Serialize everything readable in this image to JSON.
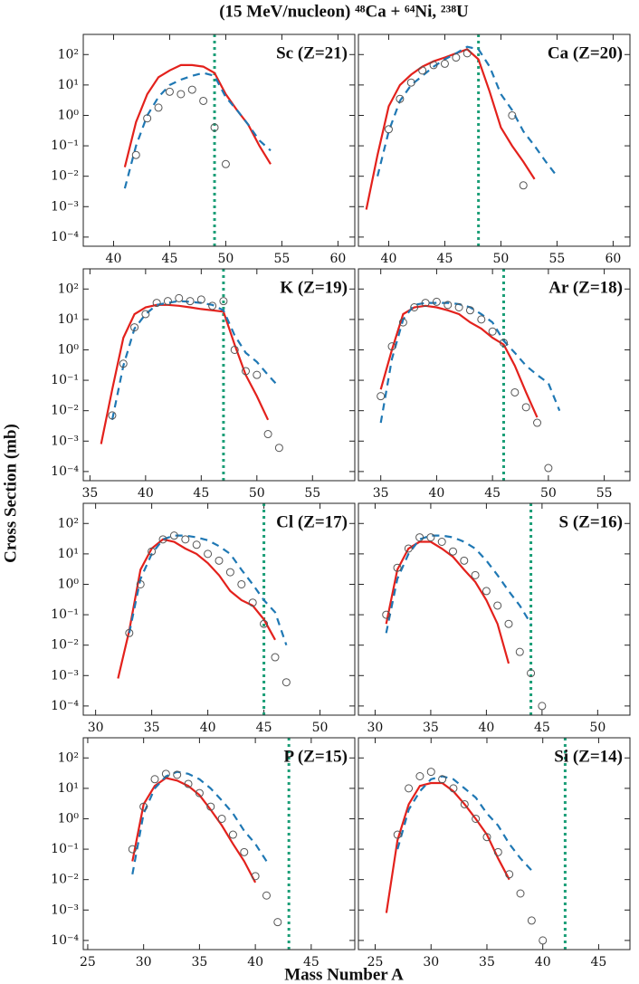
{
  "figure": {
    "title": "(15 MeV/nucleon) ⁴⁸Ca + ⁶⁴Ni, ²³⁸U",
    "xlabel": "Mass Number A",
    "ylabel": "Cross Section (mb)",
    "log_y": true,
    "ylim": [
      5e-05,
      460
    ],
    "yticks": [
      {
        "value": 0.0001,
        "label": "10⁻⁴"
      },
      {
        "value": 0.001,
        "label": "10⁻³"
      },
      {
        "value": 0.01,
        "label": "10⁻²"
      },
      {
        "value": 0.1,
        "label": "10⁻¹"
      },
      {
        "value": 1,
        "label": "10⁰"
      },
      {
        "value": 10,
        "label": "10¹"
      },
      {
        "value": 100,
        "label": "10²"
      }
    ]
  },
  "chart_data": [
    {
      "type": "line",
      "label": "Sc (Z=21)",
      "xlim": [
        37.3,
        61.5
      ],
      "xticks": [
        40,
        45,
        50,
        55,
        60
      ],
      "vline": 49,
      "vline_color": "#1b9e77",
      "series": [
        {
          "color": "#e3211c",
          "style": "solid",
          "x": [
            41,
            42,
            43,
            44,
            45,
            46,
            47,
            48,
            49,
            50,
            51,
            52,
            53,
            54
          ],
          "values": [
            0.02,
            0.6,
            5,
            18,
            30,
            45,
            45,
            40,
            25,
            5,
            1.5,
            0.5,
            0.1,
            0.025
          ]
        },
        {
          "color": "#1f78b4",
          "style": "dashed",
          "x": [
            41,
            42,
            43,
            44,
            45,
            46,
            47,
            48,
            49,
            50,
            51,
            52,
            53,
            54
          ],
          "values": [
            0.004,
            0.1,
            1,
            4,
            10,
            15,
            20,
            25,
            20,
            4,
            1.5,
            0.5,
            0.15,
            0.07
          ]
        },
        {
          "color": "#555555",
          "style": "markers",
          "x": [
            42,
            43,
            44,
            45,
            46,
            47,
            48,
            49,
            50
          ],
          "values": [
            0.05,
            0.8,
            1.8,
            6,
            5,
            7,
            3,
            0.4,
            0.025
          ]
        }
      ]
    },
    {
      "type": "line",
      "label": "Ca (Z=20)",
      "xlim": [
        37.3,
        61.5
      ],
      "xticks": [
        40,
        45,
        50,
        55,
        60
      ],
      "vline": 48,
      "vline_color": "#1b9e77",
      "series": [
        {
          "color": "#e3211c",
          "style": "solid",
          "x": [
            38,
            39,
            40,
            41,
            42,
            43,
            44,
            45,
            46,
            47,
            48,
            49,
            50,
            51,
            52,
            53
          ],
          "values": [
            0.0008,
            0.05,
            2,
            10,
            22,
            40,
            60,
            80,
            110,
            150,
            70,
            6,
            0.4,
            0.1,
            0.03,
            0.008
          ]
        },
        {
          "color": "#1f78b4",
          "style": "dashed",
          "x": [
            39,
            40,
            41,
            42,
            43,
            44,
            45,
            46,
            47,
            48,
            49,
            50,
            51,
            52,
            53,
            54,
            55
          ],
          "values": [
            0.01,
            0.3,
            3,
            10,
            20,
            40,
            70,
            110,
            180,
            150,
            40,
            5,
            1.5,
            0.3,
            0.1,
            0.03,
            0.01
          ]
        },
        {
          "color": "#555555",
          "style": "markers",
          "x": [
            40,
            41,
            42,
            43,
            44,
            45,
            46,
            47,
            51,
            52
          ],
          "values": [
            0.35,
            3.5,
            12,
            30,
            45,
            50,
            80,
            110,
            1,
            0.005
          ]
        }
      ]
    },
    {
      "type": "line",
      "label": "K (Z=19)",
      "xlim": [
        34.4,
        58.8
      ],
      "xticks": [
        35,
        40,
        45,
        50,
        55
      ],
      "vline": 47,
      "vline_color": "#1b9e77",
      "series": [
        {
          "color": "#e3211c",
          "style": "solid",
          "x": [
            36,
            37,
            38,
            39,
            40,
            41,
            42,
            43,
            44,
            45,
            46,
            47,
            48,
            49,
            50,
            51
          ],
          "values": [
            0.0008,
            0.05,
            2.5,
            15,
            25,
            30,
            30,
            28,
            25,
            22,
            20,
            18,
            1.5,
            0.15,
            0.03,
            0.005
          ]
        },
        {
          "color": "#1f78b4",
          "style": "dashed",
          "x": [
            37,
            38,
            39,
            40,
            41,
            42,
            43,
            44,
            45,
            46,
            47,
            48,
            49,
            50,
            51,
            52
          ],
          "values": [
            0.005,
            0.3,
            5,
            15,
            30,
            35,
            40,
            38,
            35,
            30,
            20,
            3,
            0.8,
            0.4,
            0.15,
            0.06
          ]
        },
        {
          "color": "#555555",
          "style": "markers",
          "x": [
            37,
            38,
            39,
            40,
            41,
            42,
            43,
            44,
            45,
            46,
            47,
            48,
            49,
            50,
            51,
            52
          ],
          "values": [
            0.007,
            0.35,
            5.5,
            15,
            35,
            40,
            50,
            40,
            45,
            28,
            40,
            1,
            0.2,
            0.15,
            0.0017,
            0.0006
          ]
        }
      ]
    },
    {
      "type": "line",
      "label": "Ar (Z=18)",
      "xlim": [
        33,
        57.3
      ],
      "xticks": [
        35,
        40,
        45,
        50,
        55
      ],
      "vline": 46,
      "vline_color": "#1b9e77",
      "series": [
        {
          "color": "#e3211c",
          "style": "solid",
          "x": [
            35,
            36,
            37,
            38,
            39,
            40,
            41,
            42,
            43,
            44,
            45,
            46,
            47,
            48,
            49
          ],
          "values": [
            0.05,
            1,
            15,
            25,
            28,
            25,
            20,
            15,
            8,
            5,
            2.5,
            1.5,
            0.3,
            0.04,
            0.006
          ]
        },
        {
          "color": "#1f78b4",
          "style": "dashed",
          "x": [
            35,
            36,
            37,
            38,
            39,
            40,
            41,
            42,
            43,
            44,
            45,
            46,
            47,
            48,
            49,
            50,
            51
          ],
          "values": [
            0.004,
            0.5,
            10,
            30,
            35,
            35,
            35,
            32,
            25,
            15,
            8,
            2,
            0.8,
            0.3,
            0.15,
            0.08,
            0.01
          ]
        },
        {
          "color": "#555555",
          "style": "markers",
          "x": [
            35,
            36,
            37,
            38,
            39,
            40,
            41,
            42,
            43,
            44,
            45,
            46,
            47,
            48,
            49,
            50
          ],
          "values": [
            0.03,
            1.3,
            8,
            25,
            35,
            38,
            30,
            25,
            20,
            10,
            4,
            1.7,
            0.04,
            0.013,
            0.004,
            0.00013
          ]
        }
      ]
    },
    {
      "type": "line",
      "label": "Cl (Z=17)",
      "xlim": [
        28.9,
        53.1
      ],
      "xticks": [
        30,
        35,
        40,
        45,
        50
      ],
      "vline": 45,
      "vline_color": "#1b9e77",
      "series": [
        {
          "color": "#e3211c",
          "style": "solid",
          "x": [
            32,
            33,
            34,
            35,
            36,
            37,
            38,
            39,
            40,
            41,
            42,
            43,
            44,
            45,
            46
          ],
          "values": [
            0.0008,
            0.03,
            3,
            15,
            30,
            25,
            15,
            10,
            5,
            2,
            0.6,
            0.3,
            0.2,
            0.07,
            0.015
          ]
        },
        {
          "color": "#1f78b4",
          "style": "dashed",
          "x": [
            33,
            34,
            35,
            36,
            37,
            38,
            39,
            40,
            41,
            42,
            43,
            44,
            45,
            46,
            47
          ],
          "values": [
            0.025,
            1.5,
            10,
            30,
            40,
            40,
            35,
            28,
            18,
            10,
            3,
            1,
            0.3,
            0.12,
            0.01
          ]
        },
        {
          "color": "#555555",
          "style": "markers",
          "x": [
            33,
            34,
            35,
            36,
            37,
            38,
            39,
            40,
            41,
            42,
            43,
            44,
            45,
            46,
            47
          ],
          "values": [
            0.025,
            1,
            12,
            30,
            40,
            30,
            20,
            10,
            6,
            2.5,
            1,
            0.25,
            0.05,
            0.004,
            0.0006
          ]
        }
      ]
    },
    {
      "type": "line",
      "label": "S (Z=16)",
      "xlim": [
        28.5,
        52.9
      ],
      "xticks": [
        30,
        35,
        40,
        45,
        50
      ],
      "vline": 44,
      "vline_color": "#1b9e77",
      "series": [
        {
          "color": "#e3211c",
          "style": "solid",
          "x": [
            31,
            32,
            33,
            34,
            35,
            36,
            37,
            38,
            39,
            40,
            41,
            42
          ],
          "values": [
            0.05,
            3,
            15,
            25,
            25,
            15,
            8,
            3,
            1.2,
            0.3,
            0.05,
            0.0025
          ]
        },
        {
          "color": "#1f78b4",
          "style": "dashed",
          "x": [
            31,
            32,
            33,
            34,
            35,
            36,
            37,
            38,
            39,
            40,
            41,
            42,
            43,
            44
          ],
          "values": [
            0.025,
            1.5,
            10,
            30,
            40,
            40,
            35,
            25,
            15,
            6,
            2,
            0.6,
            0.2,
            0.05
          ]
        },
        {
          "color": "#555555",
          "style": "markers",
          "x": [
            31,
            32,
            33,
            34,
            35,
            36,
            37,
            38,
            39,
            40,
            41,
            42,
            43,
            44,
            45
          ],
          "values": [
            0.1,
            3.5,
            15,
            35,
            35,
            25,
            12,
            6,
            2,
            0.6,
            0.2,
            0.05,
            0.006,
            0.0012,
            0.0001
          ]
        }
      ]
    },
    {
      "type": "line",
      "label": "P (Z=15)",
      "xlim": [
        24.6,
        48.9
      ],
      "xticks": [
        25,
        30,
        35,
        40,
        45
      ],
      "vline": 43,
      "vline_color": "#1b9e77",
      "series": [
        {
          "color": "#e3211c",
          "style": "solid",
          "x": [
            29,
            30,
            31,
            32,
            33,
            34,
            35,
            36,
            37,
            38,
            39,
            40
          ],
          "values": [
            0.04,
            3,
            12,
            22,
            18,
            12,
            6,
            2,
            0.6,
            0.15,
            0.04,
            0.008
          ]
        },
        {
          "color": "#1f78b4",
          "style": "dashed",
          "x": [
            29,
            30,
            31,
            32,
            33,
            34,
            35,
            36,
            37,
            38,
            39,
            40,
            41
          ],
          "values": [
            0.015,
            1.5,
            10,
            25,
            35,
            30,
            20,
            10,
            4,
            1.5,
            0.4,
            0.15,
            0.04
          ]
        },
        {
          "color": "#555555",
          "style": "markers",
          "x": [
            29,
            30,
            31,
            32,
            33,
            34,
            35,
            36,
            37,
            38,
            39,
            40,
            41,
            42
          ],
          "values": [
            0.1,
            2.5,
            20,
            30,
            28,
            14,
            7,
            2.5,
            1,
            0.3,
            0.08,
            0.013,
            0.003,
            0.0004
          ]
        }
      ]
    },
    {
      "type": "line",
      "label": "Si (Z=14)",
      "xlim": [
        23.5,
        47.8
      ],
      "xticks": [
        25,
        30,
        35,
        40,
        45
      ],
      "vline": 42,
      "vline_color": "#1b9e77",
      "series": [
        {
          "color": "#e3211c",
          "style": "solid",
          "x": [
            26,
            27,
            28,
            29,
            30,
            31,
            32,
            33,
            34,
            35,
            36,
            37
          ],
          "values": [
            0.0008,
            0.2,
            3,
            12,
            15,
            15,
            8,
            3,
            1,
            0.3,
            0.05,
            0.01
          ]
        },
        {
          "color": "#1f78b4",
          "style": "dashed",
          "x": [
            27,
            28,
            29,
            30,
            31,
            32,
            33,
            34,
            35,
            36,
            37,
            38,
            39
          ],
          "values": [
            0.1,
            2,
            8,
            20,
            25,
            20,
            10,
            5,
            1.5,
            0.6,
            0.15,
            0.05,
            0.02
          ]
        },
        {
          "color": "#555555",
          "style": "markers",
          "x": [
            27,
            28,
            29,
            30,
            31,
            32,
            33,
            34,
            35,
            36,
            37,
            38,
            39,
            40
          ],
          "values": [
            0.3,
            10,
            25,
            35,
            20,
            10,
            3,
            1,
            0.25,
            0.08,
            0.015,
            0.0035,
            0.00045,
            0.0001
          ]
        }
      ]
    }
  ]
}
